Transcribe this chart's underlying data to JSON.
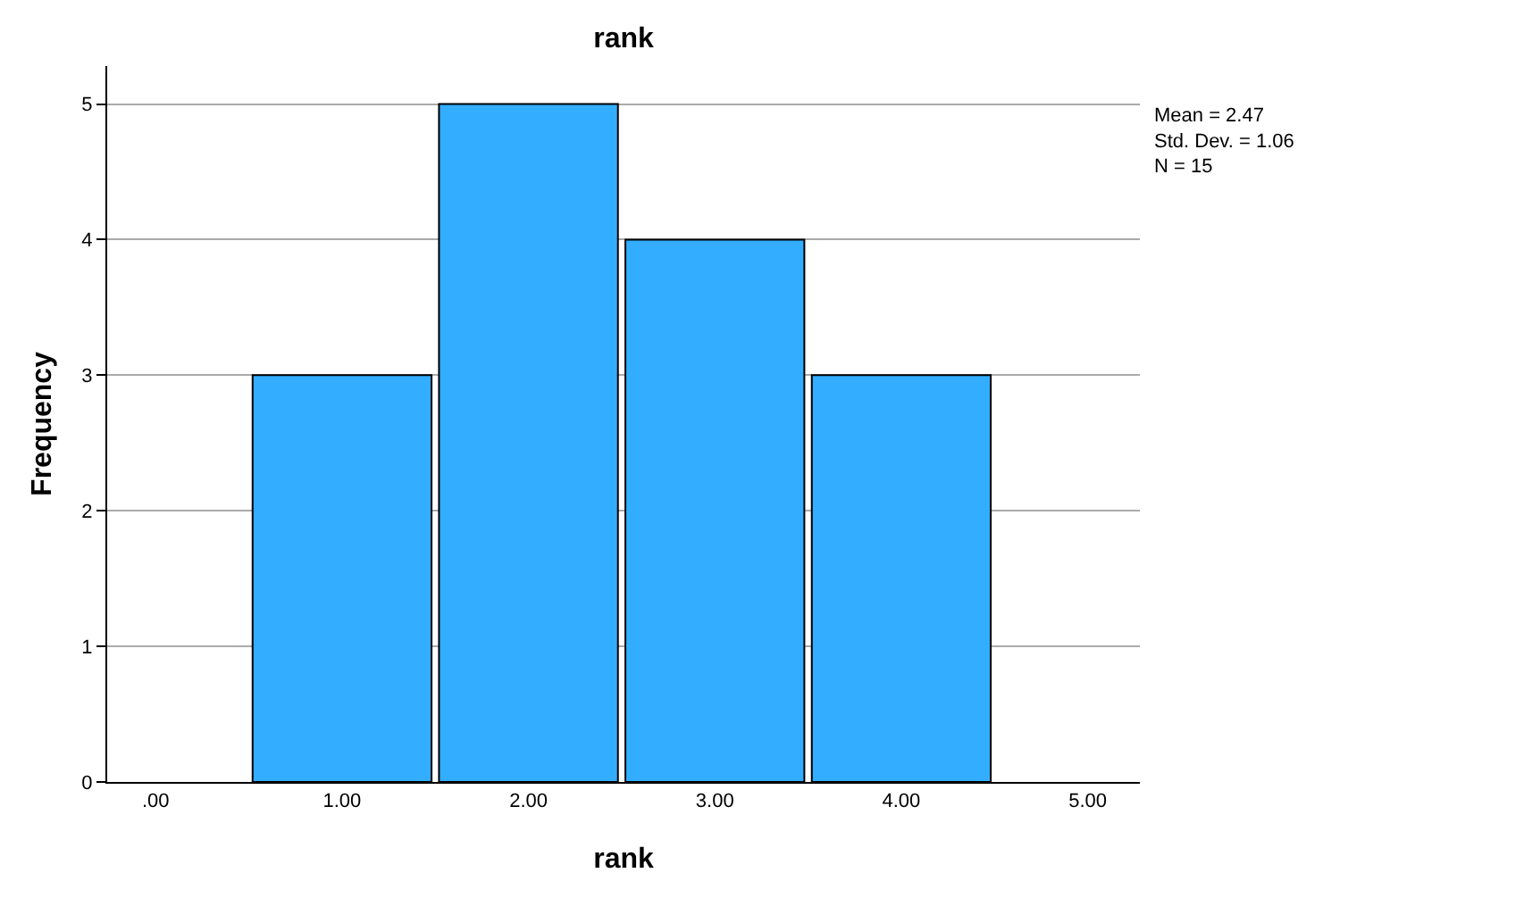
{
  "chart_data": {
    "type": "histogram",
    "title": "rank",
    "xlabel": "rank",
    "ylabel": "Frequency",
    "bins": [
      0.5,
      1.5,
      2.5,
      3.5,
      4.5
    ],
    "values": [
      3,
      5,
      4,
      3
    ],
    "color": "#33adff",
    "xlim": [
      -0.26,
      5.28
    ],
    "xticks": [
      {
        "value": 0,
        "label": ".00"
      },
      {
        "value": 1,
        "label": "1.00"
      },
      {
        "value": 2,
        "label": "2.00"
      },
      {
        "value": 3,
        "label": "3.00"
      },
      {
        "value": 4,
        "label": "4.00"
      },
      {
        "value": 5,
        "label": "5.00"
      }
    ],
    "ylim": [
      0,
      5.28
    ],
    "yticks": [
      0,
      1,
      2,
      3,
      4,
      5
    ],
    "grid": "y",
    "annotations": [
      "Mean = 2.47",
      "Std. Dev. = 1.06",
      "N = 15"
    ]
  }
}
